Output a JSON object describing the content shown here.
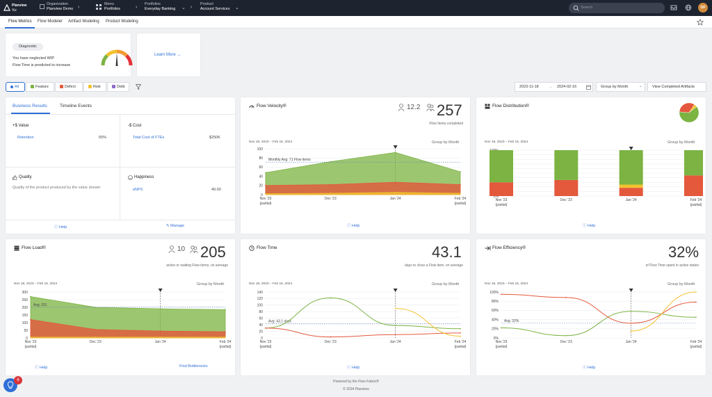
{
  "topbar": {
    "logo_line1": "Planview",
    "logo_line2": "Viz",
    "crumbs": [
      {
        "label": "Organization",
        "value": "Planview Demo"
      },
      {
        "label": "Menu",
        "value": "Portfolios"
      },
      {
        "label": "Portfolios",
        "value": "Everyday Banking"
      },
      {
        "label": "Product",
        "value": "Account Services"
      }
    ],
    "search_placeholder": "Search",
    "avatar_initials": "OP"
  },
  "tabs": [
    "Flow Metrics",
    "Flow Modeler",
    "Artifact Modeling",
    "Product Modeling"
  ],
  "diagnostic": {
    "badge": "Diagnostic",
    "line1": "You have neglected WIP",
    "line2": "Flow Time is predicted to increase"
  },
  "learn_more": "Learn More →",
  "filters": [
    {
      "label": "All",
      "color": "#2f6fd6"
    },
    {
      "label": "Feature",
      "color": "#7cb342"
    },
    {
      "label": "Defect",
      "color": "#e4583c"
    },
    {
      "label": "Risk",
      "color": "#f2c230"
    },
    {
      "label": "Debt",
      "color": "#8e6cc9"
    }
  ],
  "controls": {
    "date_from": "2023-11-18",
    "arrow": "→",
    "date_to": "2024-02-16",
    "group_by": "Group by Month",
    "view_completed": "View Completed Artifacts"
  },
  "business": {
    "tab_active": "Business Results",
    "tab_other": "Timeline Events",
    "value_title": "+$ Value",
    "retention_label": "Retention",
    "retention_value": "65%",
    "cost_title": "-$ Cost",
    "cost_label": "Total Cost of FTEs",
    "cost_value": "$250K",
    "quality_title": "Quality",
    "quality_desc": "Quality of the product produced by the value stream",
    "happiness_title": "Happiness",
    "enps_label": "eNPS",
    "enps_value": "40.00",
    "help": "Help",
    "manage": "Manage"
  },
  "common": {
    "group_by": "Group by Month",
    "help": "Help",
    "x_labels": [
      "Nov '23",
      "Dec '23",
      "Jan '24",
      "Feb '24"
    ],
    "partial": "(partial)"
  },
  "velocity": {
    "title": "Flow Velocity®",
    "secondary": "12.2",
    "value": "257",
    "subtitle": "Flow Items completed",
    "range": "Nov 18, 2023 – Feb 16, 2024",
    "avg_label": "Monthly Avg: 71 Flow items"
  },
  "distribution": {
    "title": "Flow Distribution®",
    "range": "Nov 18, 2023 – Feb 16, 2024"
  },
  "load": {
    "title": "Flow Load®",
    "secondary": "10",
    "value": "205",
    "subtitle": "active or waiting Flow items, on average",
    "range": "Nov 18, 2023 – Feb 15, 2024",
    "avg_label": "Avg: 201",
    "find_bottlenecks": "Find Bottlenecks"
  },
  "flowtime": {
    "title": "Flow Time",
    "value": "43.1",
    "subtitle": "days to close a Flow item, on average",
    "range": "Nov 18, 2023 – Feb 16, 2024",
    "avg_label": "Avg: 43.1 days"
  },
  "efficiency": {
    "title": "Flow Efficiency®",
    "value": "32%",
    "subtitle": "of Flow Time spent in active states",
    "range": "Nov 18, 2023 – Feb 16, 2024",
    "avg_label": "Avg: 32%"
  },
  "footer": {
    "line1": "Powered by the Flow Fabric®",
    "line2": "© 2024 Planview"
  },
  "fab_badge": "6",
  "colors": {
    "feature": "#7cb342",
    "defect": "#e4583c",
    "risk": "#f2c230",
    "debt": "#8e6cc9",
    "accent": "#2f6fd6"
  },
  "chart_data": [
    {
      "type": "area",
      "name": "velocity",
      "x": [
        "Nov '23",
        "Dec '23",
        "Jan '24",
        "Feb '24"
      ],
      "ylim": [
        0,
        100
      ],
      "yticks": [
        0,
        20,
        40,
        60,
        80,
        100
      ],
      "series": [
        {
          "name": "Feature",
          "values": [
            48,
            72,
            92,
            50
          ]
        },
        {
          "name": "Defect",
          "values": [
            20,
            22,
            27,
            22
          ]
        },
        {
          "name": "Risk",
          "values": [
            2,
            3,
            5,
            3
          ]
        }
      ],
      "avg": 71
    },
    {
      "type": "bar",
      "name": "distribution",
      "categories": [
        "Nov '23",
        "Dec '23",
        "Jan '24",
        "Feb '24"
      ],
      "ylim": [
        0,
        100
      ],
      "yticks": [
        "0%",
        "10%",
        "20%",
        "30%",
        "40%",
        "50%",
        "60%",
        "70%",
        "80%",
        "90%",
        "100%"
      ],
      "series": [
        {
          "name": "Feature",
          "values": [
            70,
            65,
            75,
            55
          ]
        },
        {
          "name": "Defect",
          "values": [
            30,
            35,
            18,
            45
          ]
        },
        {
          "name": "Risk",
          "values": [
            0,
            0,
            7,
            0
          ]
        }
      ],
      "pie": [
        62,
        33,
        5
      ]
    },
    {
      "type": "area",
      "name": "load",
      "x": [
        "Nov '23",
        "Dec '23",
        "Jan '24",
        "Feb '24"
      ],
      "ylim": [
        0,
        300
      ],
      "yticks": [
        0,
        50,
        100,
        150,
        200,
        250,
        300
      ],
      "series": [
        {
          "name": "Feature",
          "values": [
            270,
            200,
            190,
            185
          ]
        },
        {
          "name": "Defect",
          "values": [
            120,
            55,
            45,
            40
          ]
        },
        {
          "name": "Risk",
          "values": [
            5,
            5,
            5,
            5
          ]
        }
      ],
      "avg": 201
    },
    {
      "type": "line",
      "name": "flowtime",
      "x": [
        "Nov '23",
        "Dec '23",
        "Jan '24",
        "Feb '24"
      ],
      "ylim": [
        0,
        140
      ],
      "yticks": [
        0,
        20,
        40,
        60,
        80,
        100,
        120,
        140
      ],
      "series": [
        {
          "name": "Feature",
          "values": [
            30,
            122,
            38,
            28
          ]
        },
        {
          "name": "Defect",
          "values": [
            30,
            3,
            10,
            15
          ]
        },
        {
          "name": "Risk",
          "values": [
            null,
            null,
            90,
            5
          ]
        }
      ],
      "avg": 43.1
    },
    {
      "type": "line",
      "name": "efficiency",
      "x": [
        "Nov '23",
        "Dec '23",
        "Jan '24",
        "Feb '24"
      ],
      "ylim": [
        0,
        100
      ],
      "yticks": [
        "0%",
        "20%",
        "40%",
        "60%",
        "80%",
        "100%"
      ],
      "series": [
        {
          "name": "Feature",
          "values": [
            22,
            5,
            58,
            45
          ]
        },
        {
          "name": "Defect",
          "values": [
            95,
            88,
            32,
            78
          ]
        },
        {
          "name": "Risk",
          "values": [
            null,
            null,
            15,
            100
          ]
        }
      ],
      "avg": 32
    }
  ]
}
